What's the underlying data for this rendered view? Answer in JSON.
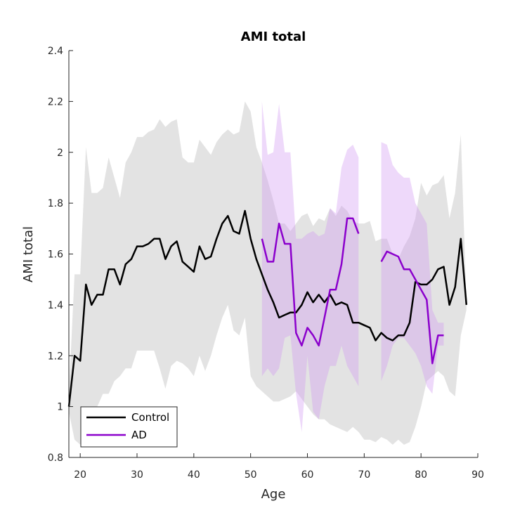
{
  "chart_data": {
    "type": "line",
    "title": "AMI total",
    "xlabel": "Age",
    "ylabel": "AMI total",
    "xlim": [
      18,
      90
    ],
    "ylim": [
      0.8,
      2.4
    ],
    "xticks": [
      20,
      30,
      40,
      50,
      60,
      70,
      80,
      90
    ],
    "yticks": [
      0.8,
      1,
      1.2,
      1.4,
      1.6,
      1.8,
      2,
      2.2,
      2.4
    ],
    "xtick_labels": [
      "20",
      "30",
      "40",
      "50",
      "60",
      "70",
      "80",
      "90"
    ],
    "ytick_labels": [
      "0.8",
      "1",
      "1.2",
      "1.4",
      "1.6",
      "1.8",
      "2",
      "2.2",
      "2.4"
    ],
    "grid": false,
    "legend_position": "bottom-left",
    "series": [
      {
        "name": "Control",
        "color": "#000000",
        "band_color": "#e3e3e3",
        "x": [
          18,
          19,
          20,
          21,
          22,
          23,
          24,
          25,
          26,
          27,
          28,
          29,
          30,
          31,
          32,
          33,
          34,
          35,
          36,
          37,
          38,
          39,
          40,
          41,
          42,
          43,
          44,
          45,
          46,
          47,
          48,
          49,
          50,
          51,
          52,
          53,
          54,
          55,
          56,
          57,
          58,
          59,
          60,
          61,
          62,
          63,
          64,
          65,
          66,
          67,
          68,
          69,
          70,
          71,
          72,
          73,
          74,
          75,
          76,
          77,
          78,
          79,
          80,
          81,
          82,
          83,
          84,
          85,
          86,
          87,
          88
        ],
        "y": [
          1.0,
          1.2,
          1.18,
          1.48,
          1.4,
          1.44,
          1.44,
          1.54,
          1.54,
          1.48,
          1.56,
          1.58,
          1.63,
          1.63,
          1.64,
          1.66,
          1.66,
          1.58,
          1.63,
          1.65,
          1.57,
          1.55,
          1.53,
          1.63,
          1.58,
          1.59,
          1.66,
          1.72,
          1.75,
          1.69,
          1.68,
          1.77,
          1.66,
          1.58,
          1.52,
          1.46,
          1.41,
          1.35,
          1.36,
          1.37,
          1.37,
          1.4,
          1.45,
          1.41,
          1.44,
          1.41,
          1.44,
          1.4,
          1.41,
          1.4,
          1.33,
          1.33,
          1.32,
          1.31,
          1.26,
          1.29,
          1.27,
          1.26,
          1.28,
          1.28,
          1.33,
          1.49,
          1.48,
          1.48,
          1.5,
          1.54,
          1.55,
          1.4,
          1.47,
          1.66,
          1.4
        ],
        "lower": [
          0.98,
          0.87,
          0.85,
          0.95,
          0.98,
          1.0,
          1.05,
          1.05,
          1.1,
          1.12,
          1.15,
          1.15,
          1.22,
          1.22,
          1.22,
          1.22,
          1.15,
          1.07,
          1.16,
          1.18,
          1.17,
          1.15,
          1.12,
          1.2,
          1.14,
          1.2,
          1.28,
          1.35,
          1.4,
          1.3,
          1.28,
          1.35,
          1.12,
          1.08,
          1.06,
          1.04,
          1.02,
          1.02,
          1.03,
          1.04,
          1.06,
          1.03,
          1.0,
          0.97,
          0.95,
          0.95,
          0.93,
          0.92,
          0.91,
          0.9,
          0.92,
          0.9,
          0.87,
          0.87,
          0.86,
          0.88,
          0.87,
          0.85,
          0.87,
          0.85,
          0.86,
          0.92,
          1.0,
          1.1,
          1.12,
          1.14,
          1.12,
          1.06,
          1.04,
          1.28,
          1.38
        ],
        "upper": [
          1.05,
          1.52,
          1.52,
          2.02,
          1.84,
          1.84,
          1.86,
          1.98,
          1.9,
          1.82,
          1.96,
          2.0,
          2.06,
          2.06,
          2.08,
          2.09,
          2.13,
          2.1,
          2.12,
          2.13,
          1.98,
          1.96,
          1.96,
          2.05,
          2.02,
          1.99,
          2.04,
          2.07,
          2.09,
          2.07,
          2.08,
          2.2,
          2.16,
          2.02,
          1.96,
          1.89,
          1.81,
          1.72,
          1.72,
          1.69,
          1.72,
          1.75,
          1.76,
          1.71,
          1.74,
          1.73,
          1.78,
          1.75,
          1.79,
          1.77,
          1.73,
          1.72,
          1.72,
          1.73,
          1.65,
          1.66,
          1.66,
          1.6,
          1.58,
          1.63,
          1.67,
          1.74,
          1.88,
          1.83,
          1.87,
          1.88,
          1.91,
          1.74,
          1.84,
          2.07,
          1.41
        ]
      },
      {
        "name": "AD",
        "color": "#8b00cc",
        "band_color": "#cf93f0",
        "segments": [
          {
            "x": [
              52,
              53,
              54,
              55,
              56,
              57,
              58,
              59,
              60,
              61,
              62,
              63,
              64,
              65,
              66,
              67,
              68,
              69
            ],
            "y": [
              1.66,
              1.57,
              1.57,
              1.72,
              1.64,
              1.64,
              1.29,
              1.24,
              1.31,
              1.28,
              1.24,
              1.35,
              1.46,
              1.46,
              1.56,
              1.74,
              1.74,
              1.68
            ],
            "lower": [
              1.12,
              1.15,
              1.12,
              1.15,
              1.27,
              1.28,
              1.05,
              0.9,
              1.2,
              0.98,
              0.95,
              1.08,
              1.16,
              1.16,
              1.24,
              1.16,
              1.12,
              1.08
            ],
            "upper": [
              2.2,
              1.99,
              2.0,
              2.19,
              2.0,
              2.0,
              1.66,
              1.66,
              1.68,
              1.69,
              1.67,
              1.68,
              1.78,
              1.76,
              1.94,
              2.01,
              2.03,
              1.98
            ]
          },
          {
            "x": [
              73,
              74,
              75,
              76,
              77,
              78,
              79,
              80,
              81,
              82,
              83,
              84
            ],
            "y": [
              1.57,
              1.61,
              1.6,
              1.59,
              1.54,
              1.54,
              1.5,
              1.46,
              1.42,
              1.17,
              1.28,
              1.28
            ],
            "lower": [
              1.1,
              1.16,
              1.24,
              1.27,
              1.27,
              1.24,
              1.21,
              1.16,
              1.08,
              1.05,
              1.24,
              1.24
            ],
            "upper": [
              2.04,
              2.03,
              1.95,
              1.92,
              1.9,
              1.9,
              1.8,
              1.76,
              1.72,
              1.38,
              1.33,
              1.33
            ]
          }
        ]
      }
    ]
  }
}
